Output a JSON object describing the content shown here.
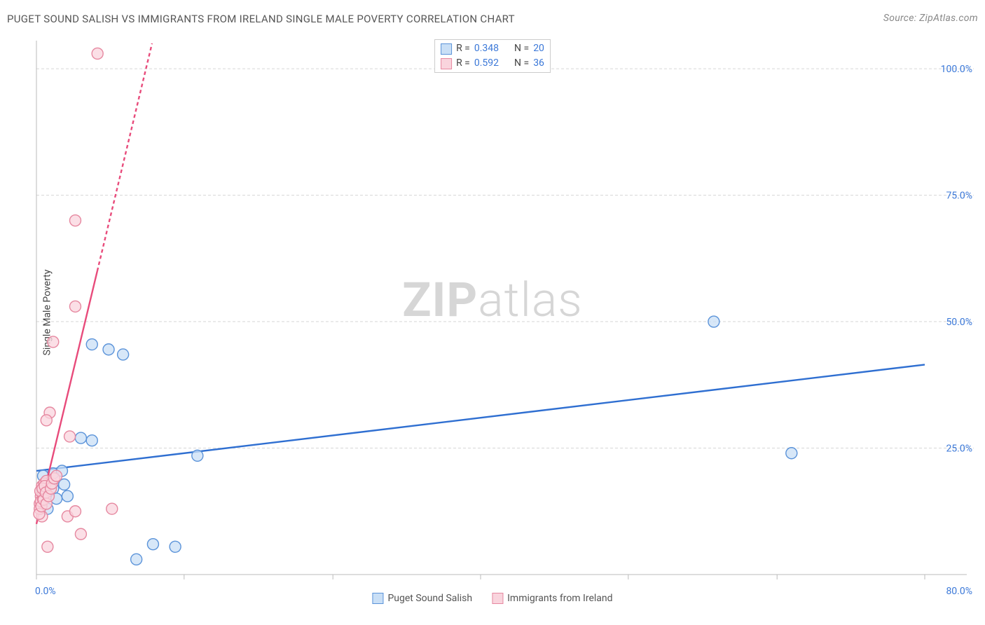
{
  "header": {
    "title": "PUGET SOUND SALISH VS IMMIGRANTS FROM IRELAND SINGLE MALE POVERTY CORRELATION CHART",
    "source_label": "Source: ZipAtlas.com"
  },
  "y_axis_label": "Single Male Poverty",
  "watermark": {
    "part1": "ZIP",
    "part2": "atlas"
  },
  "chart": {
    "type": "scatter",
    "background_color": "#ffffff",
    "grid_color": "#d6d6d6",
    "axis_color": "#bbbbbb",
    "tick_label_color": "#3b78d8",
    "label_fontsize": 14,
    "title_fontsize": 15,
    "marker_radius": 8,
    "marker_stroke_width": 1.4,
    "trend_line_width": 2.4,
    "xlim": [
      0,
      80
    ],
    "ylim": [
      0,
      105
    ],
    "x_ticks": [
      0,
      13.3,
      26.7,
      40,
      53.3,
      66.7,
      80
    ],
    "x_tick_labels": [
      "0.0%",
      "",
      "",
      "",
      "",
      "",
      "80.0%"
    ],
    "y_ticks": [
      25,
      50,
      75,
      100
    ],
    "y_tick_labels": [
      "25.0%",
      "50.0%",
      "75.0%",
      "100.0%"
    ],
    "series": [
      {
        "id": "puget_sound_salish",
        "label": "Puget Sound Salish",
        "marker_fill": "#c9dff6",
        "marker_stroke": "#5b93d9",
        "trend_color": "#2f6fd1",
        "trend_dash": "none",
        "trend_y_at_xmin": 20.5,
        "trend_y_at_xmax": 41.5,
        "r_value": "0.348",
        "n_value": "20",
        "points": [
          [
            61.0,
            50.0
          ],
          [
            68.0,
            24.0
          ],
          [
            14.5,
            23.5
          ],
          [
            10.5,
            6.0
          ],
          [
            12.5,
            5.5
          ],
          [
            9.0,
            3.0
          ],
          [
            5.0,
            45.5
          ],
          [
            6.5,
            44.5
          ],
          [
            7.8,
            43.5
          ],
          [
            4.0,
            27.0
          ],
          [
            5.0,
            26.5
          ],
          [
            1.5,
            20.0
          ],
          [
            2.3,
            20.5
          ],
          [
            0.8,
            17.5
          ],
          [
            1.5,
            17.0
          ],
          [
            2.5,
            17.8
          ],
          [
            1.8,
            15.0
          ],
          [
            2.8,
            15.5
          ],
          [
            1.0,
            13.0
          ],
          [
            0.6,
            19.5
          ]
        ]
      },
      {
        "id": "immigrants_from_ireland",
        "label": "Immigrants from Ireland",
        "marker_fill": "#f9d4dd",
        "marker_stroke": "#e688a0",
        "trend_color": "#e84b7b",
        "trend_dash": "5 4",
        "trend_y_at_xmin": 10.0,
        "trend_y_at_xmax": 740.0,
        "r_value": "0.592",
        "n_value": "36",
        "points": [
          [
            5.5,
            103.0
          ],
          [
            3.5,
            70.0
          ],
          [
            3.5,
            53.0
          ],
          [
            1.5,
            46.0
          ],
          [
            1.2,
            32.0
          ],
          [
            0.9,
            30.5
          ],
          [
            3.0,
            27.3
          ],
          [
            6.8,
            13.0
          ],
          [
            2.8,
            11.5
          ],
          [
            3.5,
            12.5
          ],
          [
            4.0,
            8.0
          ],
          [
            1.0,
            5.5
          ],
          [
            0.5,
            11.5
          ],
          [
            0.3,
            14.0
          ],
          [
            0.4,
            15.5
          ],
          [
            0.6,
            16.0
          ],
          [
            0.8,
            16.5
          ],
          [
            0.5,
            17.5
          ],
          [
            0.7,
            18.0
          ],
          [
            0.9,
            18.5
          ],
          [
            0.3,
            13.0
          ],
          [
            0.4,
            14.5
          ],
          [
            0.6,
            15.0
          ],
          [
            0.35,
            16.5
          ],
          [
            0.55,
            17.0
          ],
          [
            0.75,
            17.5
          ],
          [
            0.25,
            12.0
          ],
          [
            0.45,
            13.5
          ],
          [
            0.65,
            14.8
          ],
          [
            0.85,
            16.2
          ],
          [
            0.9,
            14.0
          ],
          [
            1.1,
            15.5
          ],
          [
            1.3,
            17.0
          ],
          [
            1.4,
            18.0
          ],
          [
            1.6,
            19.0
          ],
          [
            1.8,
            19.5
          ]
        ]
      }
    ]
  },
  "top_legend": {
    "r_label": "R =",
    "n_label": "N ="
  },
  "bottom_legend": {
    "show": true
  }
}
